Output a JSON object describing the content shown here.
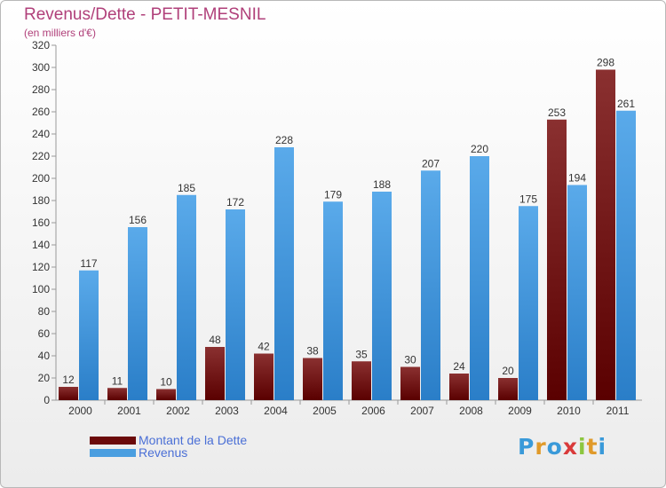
{
  "chart_data": {
    "type": "bar",
    "title": "Revenus/Dette - PETIT-MESNIL",
    "subtitle": "(en milliers d'€)",
    "categories": [
      "2000",
      "2001",
      "2002",
      "2003",
      "2004",
      "2005",
      "2006",
      "2007",
      "2008",
      "2009",
      "2010",
      "2011"
    ],
    "series": [
      {
        "name": "Montant de la Dette",
        "color": "#7a1010",
        "values": [
          12,
          11,
          10,
          48,
          42,
          38,
          35,
          30,
          24,
          20,
          253,
          298
        ]
      },
      {
        "name": "Revenus",
        "color": "#4a9ee0",
        "values": [
          117,
          156,
          185,
          172,
          228,
          179,
          188,
          207,
          220,
          175,
          194,
          261
        ]
      }
    ],
    "ylim": [
      0,
      320
    ],
    "yticks": [
      0,
      20,
      40,
      60,
      80,
      100,
      120,
      140,
      160,
      180,
      200,
      220,
      240,
      260,
      280,
      300,
      320
    ],
    "grid": false,
    "legend_position": "bottom-left"
  },
  "logo": {
    "text": "Proxiti",
    "letters": [
      "P",
      "r",
      "o",
      "x",
      "i",
      "t",
      "i"
    ]
  }
}
